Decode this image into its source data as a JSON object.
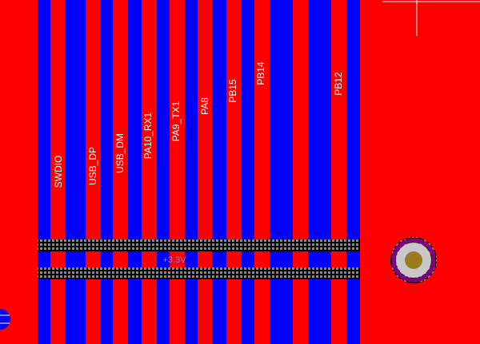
{
  "board": {
    "net_labels": [
      "SWDIO",
      "USB_DP",
      "USB_DM",
      "PA10_RX1",
      "PA9_TX1",
      "PA8",
      "PB15",
      "PB14",
      "PB12"
    ],
    "power_label": "+3.3V"
  }
}
